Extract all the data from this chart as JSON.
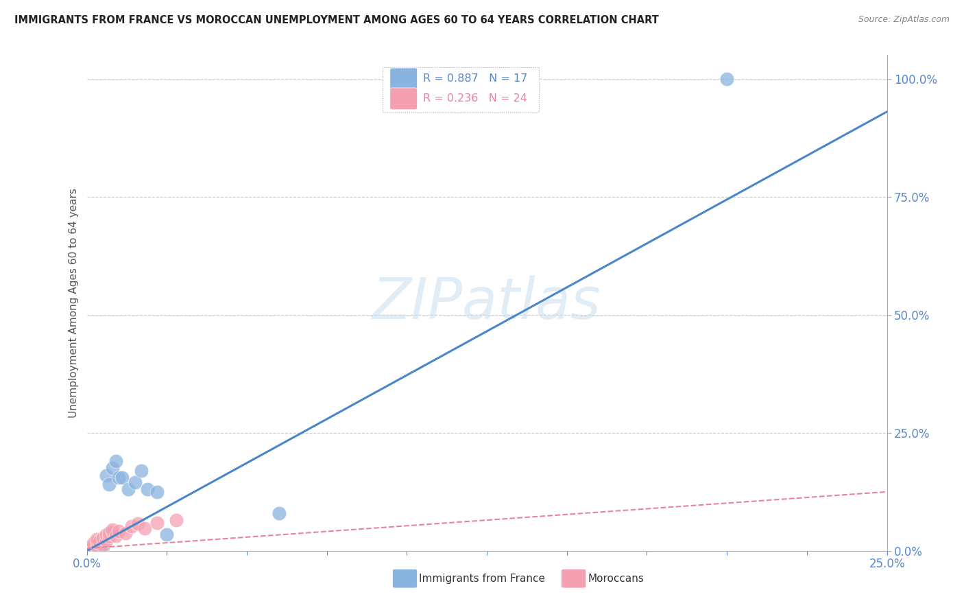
{
  "title": "IMMIGRANTS FROM FRANCE VS MOROCCAN UNEMPLOYMENT AMONG AGES 60 TO 64 YEARS CORRELATION CHART",
  "source": "Source: ZipAtlas.com",
  "ylabel": "Unemployment Among Ages 60 to 64 years",
  "xlim": [
    0.0,
    0.25
  ],
  "ylim": [
    0.0,
    1.05
  ],
  "yticks_right": [
    0.0,
    0.25,
    0.5,
    0.75,
    1.0
  ],
  "ytick_right_labels": [
    "0.0%",
    "25.0%",
    "50.0%",
    "75.0%",
    "100.0%"
  ],
  "france_R": 0.887,
  "france_N": 17,
  "morocco_R": 0.236,
  "morocco_N": 24,
  "france_color": "#8ab4e0",
  "morocco_color": "#f4a0b0",
  "france_line_color": "#4a86c8",
  "morocco_line_color": "#e8849a",
  "watermark": "ZIPatlas",
  "background_color": "#ffffff",
  "grid_color": "#cccccc",
  "tick_color": "#5588cc",
  "france_line_x0": 0.0,
  "france_line_y0": 0.0,
  "france_line_x1": 0.25,
  "france_line_y1": 0.93,
  "morocco_line_x0": 0.0,
  "morocco_line_y0": 0.005,
  "morocco_line_x1": 0.25,
  "morocco_line_y1": 0.125,
  "france_x": [
    0.003,
    0.004,
    0.005,
    0.006,
    0.007,
    0.008,
    0.009,
    0.01,
    0.011,
    0.013,
    0.015,
    0.017,
    0.019,
    0.022,
    0.025,
    0.06,
    0.2
  ],
  "france_y": [
    0.003,
    0.005,
    0.007,
    0.16,
    0.14,
    0.175,
    0.19,
    0.155,
    0.155,
    0.13,
    0.145,
    0.17,
    0.13,
    0.125,
    0.035,
    0.08,
    1.0
  ],
  "morocco_x": [
    0.001,
    0.001,
    0.002,
    0.002,
    0.003,
    0.003,
    0.003,
    0.004,
    0.005,
    0.005,
    0.006,
    0.006,
    0.007,
    0.007,
    0.008,
    0.008,
    0.009,
    0.01,
    0.012,
    0.014,
    0.016,
    0.018,
    0.022,
    0.028
  ],
  "morocco_y": [
    0.005,
    0.008,
    0.01,
    0.015,
    0.01,
    0.018,
    0.025,
    0.02,
    0.012,
    0.028,
    0.022,
    0.035,
    0.03,
    0.038,
    0.04,
    0.045,
    0.032,
    0.042,
    0.038,
    0.052,
    0.058,
    0.048,
    0.06,
    0.065
  ]
}
